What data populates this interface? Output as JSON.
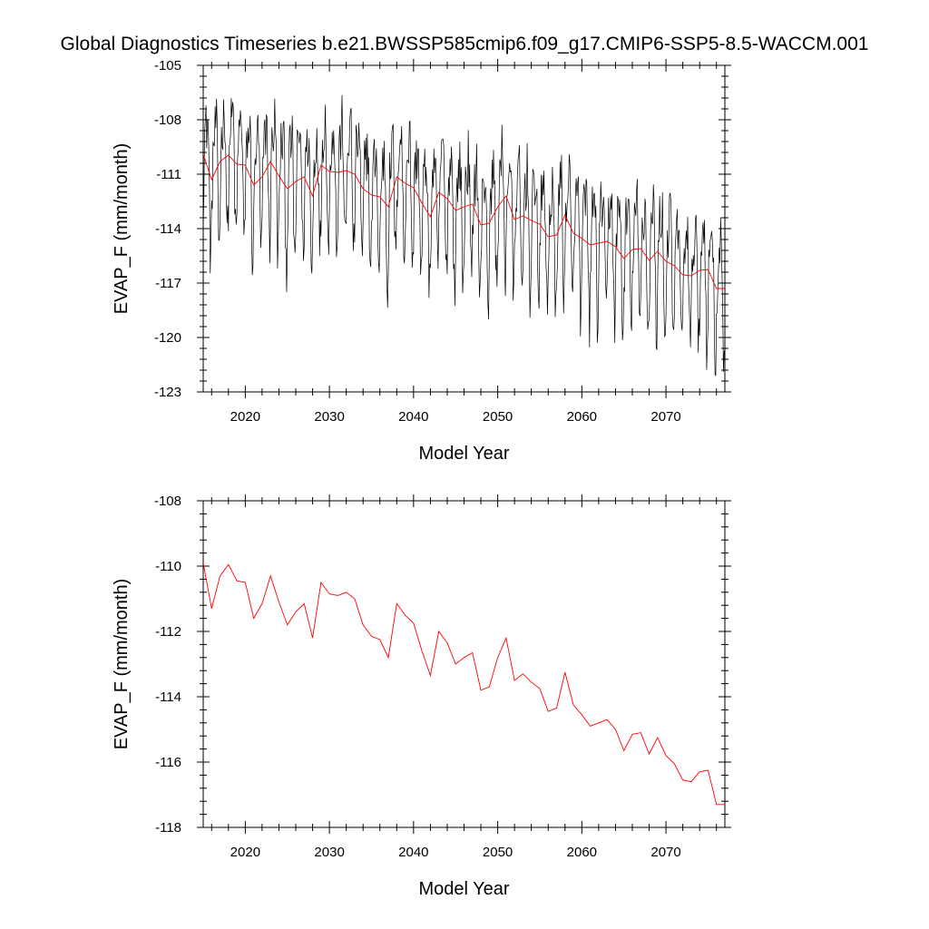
{
  "title": "Global Diagnostics Timeseries b.e21.BWSSP585cmip6.f09_g17.CMIP6-SSP5-8.5-WACCM.001",
  "chart_data": [
    {
      "type": "line",
      "xlabel": "Model Year",
      "ylabel": "EVAP_F (mm/month)",
      "xlim": [
        2015,
        2077
      ],
      "ylim": [
        -123,
        -105
      ],
      "x_ticks": [
        2020,
        2030,
        2040,
        2050,
        2060,
        2070
      ],
      "y_ticks": [
        -105,
        -108,
        -111,
        -114,
        -117,
        -120,
        -123
      ],
      "grid": false,
      "series": [
        {
          "color": "#000000",
          "kind": "monthly",
          "approximate": true,
          "start_year": 2015,
          "months": 744,
          "annual_cycle_amplitude": 3.2
        },
        {
          "color": "#ff0000",
          "kind": "annual-mean",
          "x": [
            2015,
            2016,
            2017,
            2018,
            2019,
            2020,
            2021,
            2022,
            2023,
            2024,
            2025,
            2026,
            2027,
            2028,
            2029,
            2030,
            2031,
            2032,
            2033,
            2034,
            2035,
            2036,
            2037,
            2038,
            2039,
            2040,
            2041,
            2042,
            2043,
            2044,
            2045,
            2046,
            2047,
            2048,
            2049,
            2050,
            2051,
            2052,
            2053,
            2054,
            2055,
            2056,
            2057,
            2058,
            2059,
            2060,
            2061,
            2062,
            2063,
            2064,
            2065,
            2066,
            2067,
            2068,
            2069,
            2070,
            2071,
            2072,
            2073,
            2074,
            2075,
            2076,
            2077
          ],
          "values": [
            -109.9,
            -111.3,
            -110.3,
            -109.95,
            -110.45,
            -110.5,
            -111.6,
            -111.15,
            -110.3,
            -111.1,
            -111.8,
            -111.4,
            -111.15,
            -112.2,
            -110.5,
            -110.85,
            -110.9,
            -110.8,
            -111.0,
            -111.8,
            -112.15,
            -112.25,
            -112.8,
            -111.15,
            -111.5,
            -111.75,
            -112.6,
            -113.35,
            -112.0,
            -112.35,
            -113.0,
            -112.8,
            -112.65,
            -113.8,
            -113.7,
            -112.8,
            -112.2,
            -113.5,
            -113.3,
            -113.55,
            -113.75,
            -114.45,
            -114.35,
            -113.25,
            -114.25,
            -114.55,
            -114.9,
            -114.8,
            -114.7,
            -115.0,
            -115.65,
            -115.15,
            -115.1,
            -115.75,
            -115.25,
            -115.8,
            -116.05,
            -116.55,
            -116.6,
            -116.3,
            -116.25,
            -117.3,
            -117.3
          ]
        }
      ]
    },
    {
      "type": "line",
      "xlabel": "Model Year",
      "ylabel": "EVAP_F (mm/month)",
      "xlim": [
        2015,
        2077
      ],
      "ylim": [
        -118,
        -108
      ],
      "x_ticks": [
        2020,
        2030,
        2040,
        2050,
        2060,
        2070
      ],
      "y_ticks": [
        -108,
        -110,
        -112,
        -114,
        -116,
        -118
      ],
      "grid": false,
      "series": [
        {
          "color": "#ff0000",
          "kind": "annual-mean",
          "x": [
            2015,
            2016,
            2017,
            2018,
            2019,
            2020,
            2021,
            2022,
            2023,
            2024,
            2025,
            2026,
            2027,
            2028,
            2029,
            2030,
            2031,
            2032,
            2033,
            2034,
            2035,
            2036,
            2037,
            2038,
            2039,
            2040,
            2041,
            2042,
            2043,
            2044,
            2045,
            2046,
            2047,
            2048,
            2049,
            2050,
            2051,
            2052,
            2053,
            2054,
            2055,
            2056,
            2057,
            2058,
            2059,
            2060,
            2061,
            2062,
            2063,
            2064,
            2065,
            2066,
            2067,
            2068,
            2069,
            2070,
            2071,
            2072,
            2073,
            2074,
            2075,
            2076,
            2077
          ],
          "values": [
            -109.9,
            -111.3,
            -110.3,
            -109.95,
            -110.45,
            -110.5,
            -111.6,
            -111.15,
            -110.3,
            -111.1,
            -111.8,
            -111.4,
            -111.15,
            -112.2,
            -110.5,
            -110.85,
            -110.9,
            -110.8,
            -111.0,
            -111.8,
            -112.15,
            -112.25,
            -112.8,
            -111.15,
            -111.5,
            -111.75,
            -112.6,
            -113.35,
            -112.0,
            -112.35,
            -113.0,
            -112.8,
            -112.65,
            -113.8,
            -113.7,
            -112.8,
            -112.2,
            -113.5,
            -113.3,
            -113.55,
            -113.75,
            -114.45,
            -114.35,
            -113.25,
            -114.25,
            -114.55,
            -114.9,
            -114.8,
            -114.7,
            -115.0,
            -115.65,
            -115.15,
            -115.1,
            -115.75,
            -115.25,
            -115.8,
            -116.05,
            -116.55,
            -116.6,
            -116.3,
            -116.25,
            -117.3,
            -117.3
          ]
        }
      ]
    }
  ]
}
